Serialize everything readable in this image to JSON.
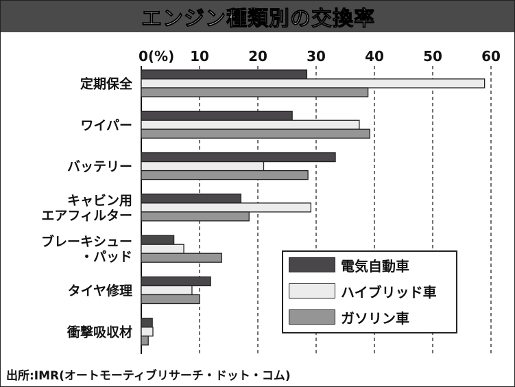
{
  "chart_data": {
    "type": "bar",
    "orientation": "horizontal",
    "title": "エンジン種類別の交換率",
    "xlabel": "(%)",
    "xlim": [
      0,
      60
    ],
    "xticks": [
      "0(%)",
      "10",
      "20",
      "30",
      "40",
      "50",
      "60"
    ],
    "grid": "vertical dashed",
    "legend_position": "bottom-right",
    "categories": [
      "定期保全",
      "ワイパー",
      "バッテリー",
      "キャビン用\nエアフィルター",
      "ブレーキシュー\n・パッド",
      "タイヤ修理",
      "衝撃吸収材"
    ],
    "series": [
      {
        "name": "電気自動車",
        "color": "#4a474a",
        "values": [
          28.4,
          25.9,
          33.3,
          17.1,
          5.6,
          11.9,
          1.9
        ]
      },
      {
        "name": "ハイブリッド車",
        "color": "#ececec",
        "values": [
          58.9,
          37.4,
          21.0,
          29.1,
          7.3,
          8.7,
          2.0
        ]
      },
      {
        "name": "ガソリン車",
        "color": "#959595",
        "values": [
          38.9,
          39.2,
          28.6,
          18.5,
          13.8,
          10.0,
          1.2
        ]
      }
    ]
  },
  "source": "出所:IMR(オートモーティブリサーチ・ドット・コム)"
}
